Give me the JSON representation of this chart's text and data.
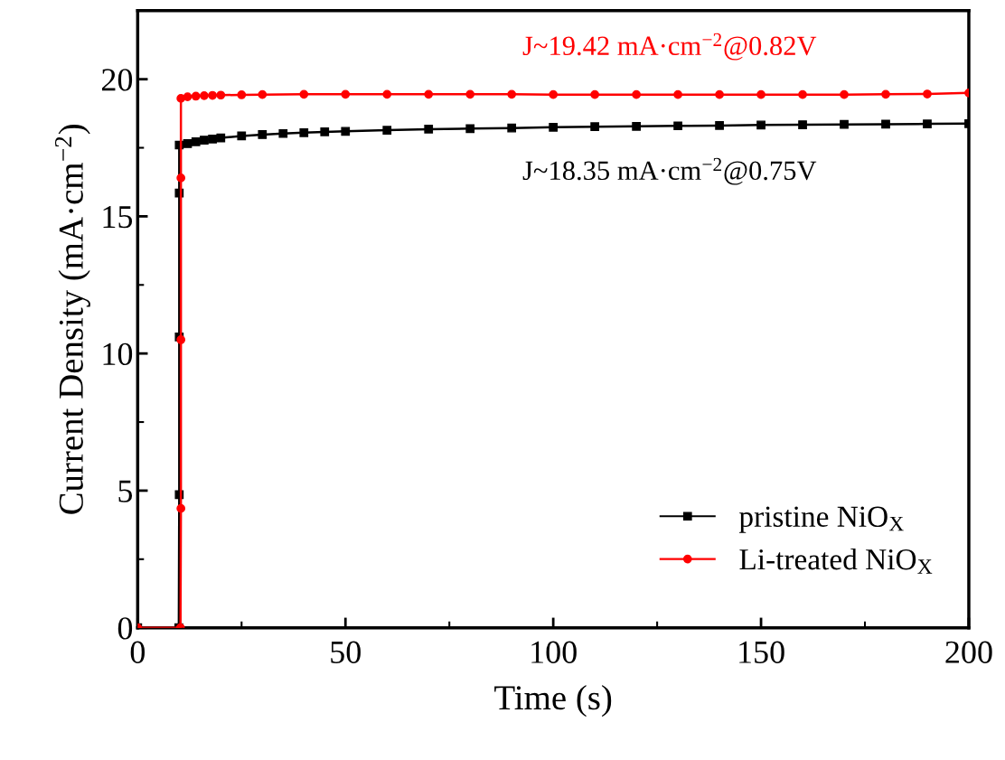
{
  "chart_data": {
    "type": "line",
    "xlabel": "Time (s)",
    "ylabel": "Current Density (mA·cm$^{−2}$)",
    "xlim": [
      0,
      200
    ],
    "ylim": [
      0,
      22.5
    ],
    "xticks": [
      0,
      50,
      100,
      150,
      200
    ],
    "yticks": [
      0,
      5,
      10,
      15,
      20
    ],
    "grid": false,
    "legend": "bottom right",
    "line_style": "solid",
    "series": [
      {
        "name": "pristine NiO$_{X}$",
        "color": "#000000",
        "marker": "square",
        "x": [
          0,
          9.9,
          10.0,
          10.0,
          10.0,
          10.0,
          12,
          14,
          16,
          18,
          20,
          25,
          30,
          35,
          40,
          45,
          50,
          60,
          70,
          80,
          90,
          100,
          110,
          120,
          130,
          140,
          150,
          160,
          170,
          180,
          190,
          200
        ],
        "values": [
          0,
          0,
          4.85,
          10.6,
          15.85,
          17.6,
          17.65,
          17.72,
          17.78,
          17.82,
          17.86,
          17.93,
          17.98,
          18.02,
          18.05,
          18.08,
          18.1,
          18.14,
          18.18,
          18.2,
          18.22,
          18.25,
          18.27,
          18.28,
          18.3,
          18.31,
          18.33,
          18.34,
          18.35,
          18.36,
          18.37,
          18.38
        ]
      },
      {
        "name": "Li-treated NiO$_{X}$",
        "color": "#ff0000",
        "marker": "circle",
        "x": [
          0,
          10.3,
          10.4,
          10.4,
          10.4,
          10.4,
          12,
          14,
          16,
          18,
          20,
          25,
          30,
          40,
          50,
          60,
          70,
          80,
          90,
          100,
          110,
          120,
          130,
          140,
          150,
          160,
          170,
          180,
          190,
          200
        ],
        "values": [
          0,
          0,
          4.35,
          10.5,
          16.4,
          19.3,
          19.36,
          19.38,
          19.4,
          19.41,
          19.42,
          19.43,
          19.44,
          19.45,
          19.45,
          19.45,
          19.45,
          19.45,
          19.45,
          19.44,
          19.44,
          19.44,
          19.44,
          19.44,
          19.44,
          19.44,
          19.44,
          19.45,
          19.46,
          19.5
        ]
      }
    ],
    "annotations": [
      {
        "text": "J~18.35 mA·cm$^{−2}$@0.75V",
        "x": 128,
        "y": 18.35
      },
      {
        "text": "J~19.42 mA·cm$^{−2}$@0.82V",
        "x": 128,
        "y": 19.42
      }
    ]
  }
}
